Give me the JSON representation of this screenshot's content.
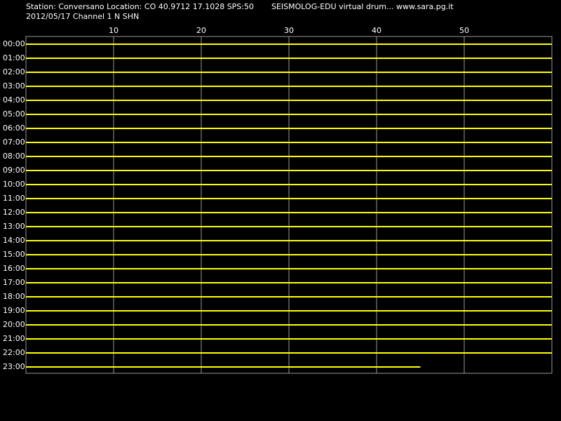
{
  "header": {
    "station": "Station: Conversano Location: CO 40.9712 17.1028 SPS:50",
    "source": "SEISMOLOG-EDU virtual drum... www.sara.pg.it",
    "date_channel": "2012/05/17  Channel 1 N SHN"
  },
  "chart_data": {
    "type": "helicorder",
    "color": "#ffff00",
    "grid": true,
    "categories": [
      "00:00",
      "01:00",
      "02:00",
      "03:00",
      "04:00",
      "05:00",
      "06:00",
      "07:00",
      "08:00",
      "09:00",
      "10:00",
      "11:00",
      "12:00",
      "13:00",
      "14:00",
      "15:00",
      "16:00",
      "17:00",
      "18:00",
      "19:00",
      "20:00",
      "21:00",
      "22:00",
      "23:00"
    ],
    "values": [
      60,
      60,
      60,
      60,
      60,
      60,
      60,
      60,
      60,
      60,
      60,
      60,
      60,
      60,
      60,
      60,
      60,
      60,
      60,
      60,
      60,
      60,
      60,
      45
    ],
    "xlim": [
      0,
      60
    ],
    "xticks": [
      10,
      20,
      30,
      40,
      50
    ]
  }
}
